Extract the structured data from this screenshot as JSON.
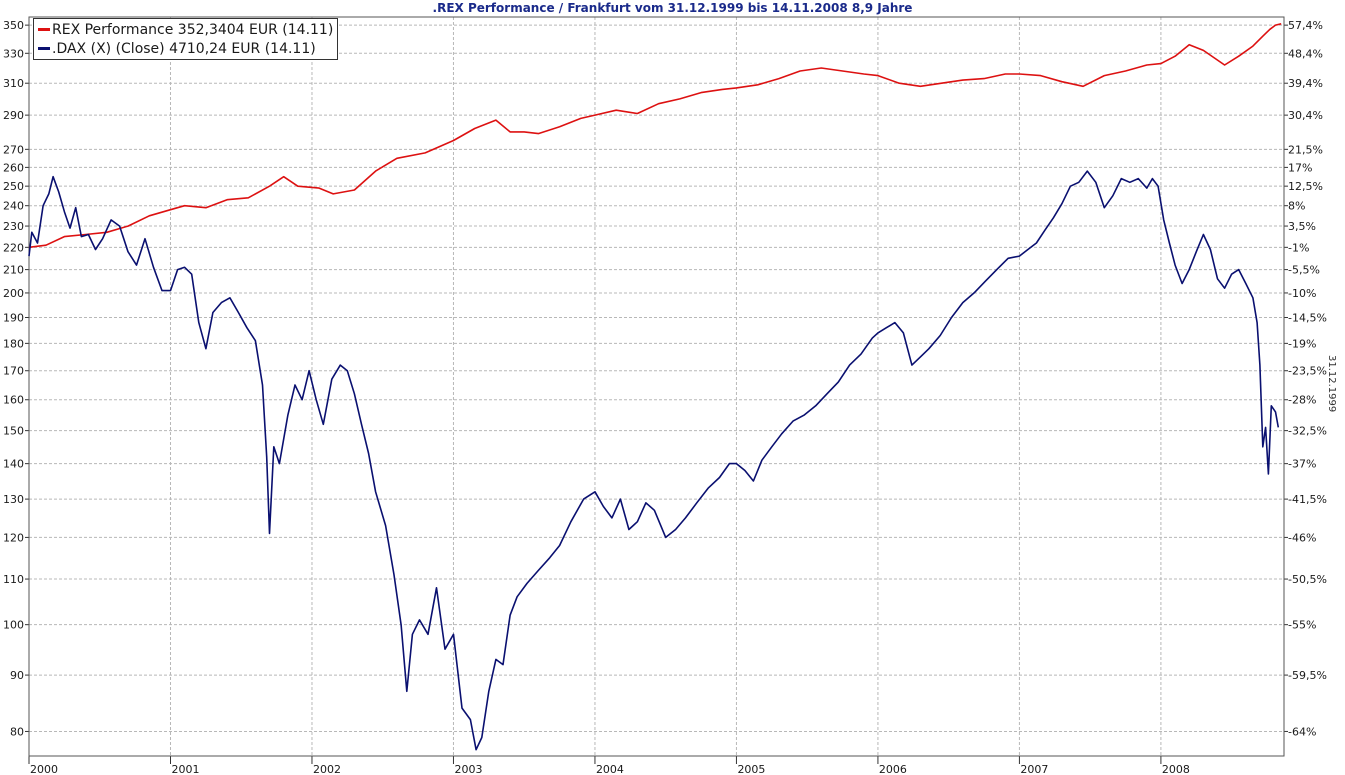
{
  "title": ".REX Performance / Frankfurt vom 31.12.1999 bis 14.11.2008 8,9 Jahre",
  "side_label": "31.12.1999",
  "colors": {
    "rex": "#dd1111",
    "dax": "#0a1070",
    "grid": "#b8b8b8",
    "title": "#1a2a8a"
  },
  "legend": {
    "rex_label": "REX Performance 352,3404 EUR (14.11)",
    "dax_label": ".DAX (X) (Close) 4710,24 EUR (14.11)"
  },
  "chart_data": {
    "type": "line",
    "y_scale": "log",
    "xlim": [
      2000.0,
      2008.87
    ],
    "ylim": [
      76,
      356
    ],
    "x_ticks": [
      2000,
      2001,
      2002,
      2003,
      2004,
      2005,
      2006,
      2007,
      2008
    ],
    "y_ticks_left": [
      80,
      90,
      100,
      110,
      120,
      130,
      140,
      150,
      160,
      170,
      180,
      190,
      200,
      210,
      220,
      230,
      240,
      250,
      260,
      270,
      290,
      310,
      330,
      350
    ],
    "y_ticks_right": [
      {
        "label": "57,4%",
        "value": 350
      },
      {
        "label": "48,4%",
        "value": 330
      },
      {
        "label": "39,4%",
        "value": 310
      },
      {
        "label": "30,4%",
        "value": 290
      },
      {
        "label": "21,5%",
        "value": 270
      },
      {
        "label": "17%",
        "value": 260
      },
      {
        "label": "12,5%",
        "value": 250
      },
      {
        "label": "8%",
        "value": 240
      },
      {
        "label": "3,5%",
        "value": 230
      },
      {
        "label": "-1%",
        "value": 220
      },
      {
        "label": "-5,5%",
        "value": 210
      },
      {
        "label": "-10%",
        "value": 200
      },
      {
        "label": "-14,5%",
        "value": 190
      },
      {
        "label": "-19%",
        "value": 180
      },
      {
        "label": "-23,5%",
        "value": 170
      },
      {
        "label": "-28%",
        "value": 160
      },
      {
        "label": "-32,5%",
        "value": 150
      },
      {
        "label": "-37%",
        "value": 140
      },
      {
        "label": "-41,5%",
        "value": 130
      },
      {
        "label": "-46%",
        "value": 120
      },
      {
        "label": "-50,5%",
        "value": 110
      },
      {
        "label": "-55%",
        "value": 100
      },
      {
        "label": "-59,5%",
        "value": 90
      },
      {
        "label": "-64%",
        "value": 80
      }
    ],
    "grid": true,
    "legend_position": "top-left",
    "series": [
      {
        "name": "REX Performance 352,3404 EUR (14.11)",
        "points": [
          [
            2000.0,
            220
          ],
          [
            2000.12,
            221
          ],
          [
            2000.25,
            225
          ],
          [
            2000.4,
            226
          ],
          [
            2000.55,
            227
          ],
          [
            2000.7,
            230
          ],
          [
            2000.85,
            235
          ],
          [
            2001.0,
            238
          ],
          [
            2001.1,
            240
          ],
          [
            2001.25,
            239
          ],
          [
            2001.4,
            243
          ],
          [
            2001.55,
            244
          ],
          [
            2001.7,
            250
          ],
          [
            2001.8,
            255
          ],
          [
            2001.9,
            250
          ],
          [
            2002.05,
            249
          ],
          [
            2002.15,
            246
          ],
          [
            2002.3,
            248
          ],
          [
            2002.45,
            258
          ],
          [
            2002.6,
            265
          ],
          [
            2002.8,
            268
          ],
          [
            2003.0,
            275
          ],
          [
            2003.15,
            282
          ],
          [
            2003.3,
            287
          ],
          [
            2003.4,
            280
          ],
          [
            2003.5,
            280
          ],
          [
            2003.6,
            279
          ],
          [
            2003.75,
            283
          ],
          [
            2003.9,
            288
          ],
          [
            2004.0,
            290
          ],
          [
            2004.15,
            293
          ],
          [
            2004.3,
            291
          ],
          [
            2004.45,
            297
          ],
          [
            2004.6,
            300
          ],
          [
            2004.75,
            304
          ],
          [
            2004.9,
            306
          ],
          [
            2005.0,
            307
          ],
          [
            2005.15,
            309
          ],
          [
            2005.3,
            313
          ],
          [
            2005.45,
            318
          ],
          [
            2005.6,
            320
          ],
          [
            2005.75,
            318
          ],
          [
            2005.9,
            316
          ],
          [
            2006.0,
            315
          ],
          [
            2006.15,
            310
          ],
          [
            2006.3,
            308
          ],
          [
            2006.45,
            310
          ],
          [
            2006.6,
            312
          ],
          [
            2006.75,
            313
          ],
          [
            2006.9,
            316
          ],
          [
            2007.0,
            316
          ],
          [
            2007.15,
            315
          ],
          [
            2007.3,
            311
          ],
          [
            2007.45,
            308
          ],
          [
            2007.6,
            315
          ],
          [
            2007.75,
            318
          ],
          [
            2007.9,
            322
          ],
          [
            2008.0,
            323
          ],
          [
            2008.1,
            328
          ],
          [
            2008.2,
            336
          ],
          [
            2008.3,
            332
          ],
          [
            2008.45,
            322
          ],
          [
            2008.55,
            328
          ],
          [
            2008.65,
            335
          ],
          [
            2008.72,
            342
          ],
          [
            2008.77,
            347
          ],
          [
            2008.81,
            350
          ],
          [
            2008.85,
            351
          ]
        ]
      },
      {
        "name": ".DAX (X) (Close) 4710,24 EUR (14.11)",
        "points": [
          [
            2000.0,
            216
          ],
          [
            2000.02,
            227
          ],
          [
            2000.06,
            222
          ],
          [
            2000.1,
            240
          ],
          [
            2000.14,
            246
          ],
          [
            2000.17,
            255
          ],
          [
            2000.21,
            247
          ],
          [
            2000.25,
            237
          ],
          [
            2000.29,
            229
          ],
          [
            2000.33,
            239
          ],
          [
            2000.37,
            225
          ],
          [
            2000.42,
            226
          ],
          [
            2000.47,
            219
          ],
          [
            2000.52,
            224
          ],
          [
            2000.58,
            233
          ],
          [
            2000.64,
            230
          ],
          [
            2000.7,
            218
          ],
          [
            2000.76,
            212
          ],
          [
            2000.82,
            224
          ],
          [
            2000.88,
            211
          ],
          [
            2000.94,
            201
          ],
          [
            2001.0,
            201
          ],
          [
            2001.05,
            210
          ],
          [
            2001.1,
            211
          ],
          [
            2001.15,
            208
          ],
          [
            2001.2,
            188
          ],
          [
            2001.25,
            178
          ],
          [
            2001.3,
            192
          ],
          [
            2001.36,
            196
          ],
          [
            2001.42,
            198
          ],
          [
            2001.48,
            192
          ],
          [
            2001.54,
            186
          ],
          [
            2001.6,
            181
          ],
          [
            2001.65,
            165
          ],
          [
            2001.68,
            142
          ],
          [
            2001.7,
            121
          ],
          [
            2001.73,
            145
          ],
          [
            2001.77,
            140
          ],
          [
            2001.83,
            155
          ],
          [
            2001.88,
            165
          ],
          [
            2001.93,
            160
          ],
          [
            2001.98,
            170
          ],
          [
            2002.03,
            160
          ],
          [
            2002.08,
            152
          ],
          [
            2002.14,
            167
          ],
          [
            2002.2,
            172
          ],
          [
            2002.25,
            170
          ],
          [
            2002.3,
            162
          ],
          [
            2002.35,
            152
          ],
          [
            2002.4,
            143
          ],
          [
            2002.45,
            132
          ],
          [
            2002.52,
            123
          ],
          [
            2002.58,
            111
          ],
          [
            2002.63,
            100
          ],
          [
            2002.67,
            87
          ],
          [
            2002.71,
            98
          ],
          [
            2002.76,
            101
          ],
          [
            2002.82,
            98
          ],
          [
            2002.88,
            108
          ],
          [
            2002.94,
            95
          ],
          [
            2003.0,
            98
          ],
          [
            2003.06,
            84
          ],
          [
            2003.12,
            82
          ],
          [
            2003.16,
            77
          ],
          [
            2003.2,
            79
          ],
          [
            2003.25,
            87
          ],
          [
            2003.3,
            93
          ],
          [
            2003.35,
            92
          ],
          [
            2003.4,
            102
          ],
          [
            2003.45,
            106
          ],
          [
            2003.52,
            109
          ],
          [
            2003.6,
            112
          ],
          [
            2003.68,
            115
          ],
          [
            2003.75,
            118
          ],
          [
            2003.83,
            124
          ],
          [
            2003.92,
            130
          ],
          [
            2004.0,
            132
          ],
          [
            2004.06,
            128
          ],
          [
            2004.12,
            125
          ],
          [
            2004.18,
            130
          ],
          [
            2004.24,
            122
          ],
          [
            2004.3,
            124
          ],
          [
            2004.36,
            129
          ],
          [
            2004.42,
            127
          ],
          [
            2004.5,
            120
          ],
          [
            2004.57,
            122
          ],
          [
            2004.64,
            125
          ],
          [
            2004.72,
            129
          ],
          [
            2004.8,
            133
          ],
          [
            2004.88,
            136
          ],
          [
            2004.95,
            140
          ],
          [
            2005.0,
            140
          ],
          [
            2005.06,
            138
          ],
          [
            2005.12,
            135
          ],
          [
            2005.18,
            141
          ],
          [
            2005.25,
            145
          ],
          [
            2005.32,
            149
          ],
          [
            2005.4,
            153
          ],
          [
            2005.48,
            155
          ],
          [
            2005.56,
            158
          ],
          [
            2005.64,
            162
          ],
          [
            2005.72,
            166
          ],
          [
            2005.8,
            172
          ],
          [
            2005.88,
            176
          ],
          [
            2005.96,
            182
          ],
          [
            2006.0,
            184
          ],
          [
            2006.06,
            186
          ],
          [
            2006.12,
            188
          ],
          [
            2006.18,
            184
          ],
          [
            2006.24,
            172
          ],
          [
            2006.3,
            175
          ],
          [
            2006.36,
            178
          ],
          [
            2006.44,
            183
          ],
          [
            2006.52,
            190
          ],
          [
            2006.6,
            196
          ],
          [
            2006.68,
            200
          ],
          [
            2006.76,
            205
          ],
          [
            2006.84,
            210
          ],
          [
            2006.92,
            215
          ],
          [
            2007.0,
            216
          ],
          [
            2007.06,
            219
          ],
          [
            2007.12,
            222
          ],
          [
            2007.18,
            228
          ],
          [
            2007.24,
            234
          ],
          [
            2007.3,
            241
          ],
          [
            2007.36,
            250
          ],
          [
            2007.42,
            252
          ],
          [
            2007.48,
            258
          ],
          [
            2007.54,
            252
          ],
          [
            2007.6,
            239
          ],
          [
            2007.66,
            245
          ],
          [
            2007.72,
            254
          ],
          [
            2007.78,
            252
          ],
          [
            2007.84,
            254
          ],
          [
            2007.9,
            249
          ],
          [
            2007.94,
            254
          ],
          [
            2007.98,
            250
          ],
          [
            2008.02,
            233
          ],
          [
            2008.06,
            222
          ],
          [
            2008.1,
            212
          ],
          [
            2008.15,
            204
          ],
          [
            2008.2,
            210
          ],
          [
            2008.25,
            218
          ],
          [
            2008.3,
            226
          ],
          [
            2008.35,
            219
          ],
          [
            2008.4,
            206
          ],
          [
            2008.45,
            202
          ],
          [
            2008.5,
            208
          ],
          [
            2008.55,
            210
          ],
          [
            2008.6,
            204
          ],
          [
            2008.65,
            198
          ],
          [
            2008.68,
            188
          ],
          [
            2008.7,
            172
          ],
          [
            2008.72,
            145
          ],
          [
            2008.74,
            151
          ],
          [
            2008.76,
            137
          ],
          [
            2008.78,
            158
          ],
          [
            2008.81,
            156
          ],
          [
            2008.83,
            151
          ]
        ]
      }
    ]
  }
}
